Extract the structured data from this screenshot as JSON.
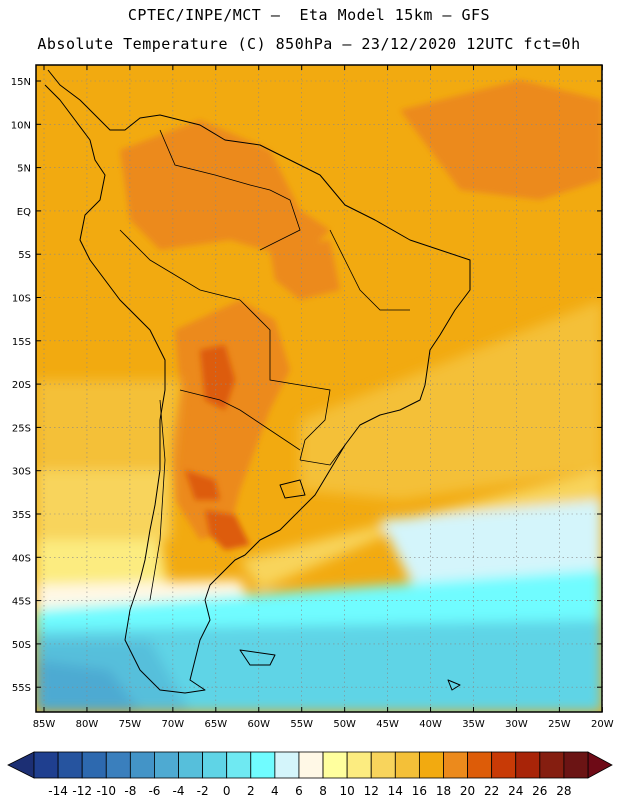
{
  "title": {
    "line1": "CPTEC/INPE/MCT –  Eta Model 15km – GFS",
    "line2": "Absolute Temperature (C) 850hPa – 23/12/2020 12UTC fct=0h"
  },
  "map": {
    "region": "South America",
    "lat_ticks": [
      "15N",
      "10N",
      "5N",
      "EQ",
      "5S",
      "10S",
      "15S",
      "20S",
      "25S",
      "30S",
      "35S",
      "40S",
      "45S",
      "50S",
      "55S"
    ],
    "lon_ticks": [
      "85W",
      "80W",
      "75W",
      "70W",
      "65W",
      "60W",
      "55W",
      "50W",
      "45W",
      "40W",
      "35W",
      "30W",
      "25W",
      "20W"
    ]
  },
  "colorbar": {
    "labels": [
      "-14",
      "-12",
      "-10",
      "-8",
      "-6",
      "-4",
      "-2",
      "0",
      "2",
      "4",
      "6",
      "8",
      "10",
      "12",
      "14",
      "16",
      "18",
      "20",
      "22",
      "24",
      "26",
      "28"
    ],
    "colors": [
      "#1f3f8f",
      "#26549f",
      "#2d69af",
      "#3a7fbd",
      "#4394c7",
      "#4eaad2",
      "#56bfdb",
      "#5fd4e6",
      "#6fe9f2",
      "#70fcff",
      "#d4f5fb",
      "#fff8e6",
      "#ffff9e",
      "#fcec80",
      "#f8d45c",
      "#f4c038",
      "#f2aa10",
      "#ec8a1c",
      "#dd5c08",
      "#c83a06",
      "#a82408",
      "#851e10",
      "#6b1414"
    ],
    "endpoint_low": "#1c2f74",
    "endpoint_high": "#6e0a16"
  }
}
